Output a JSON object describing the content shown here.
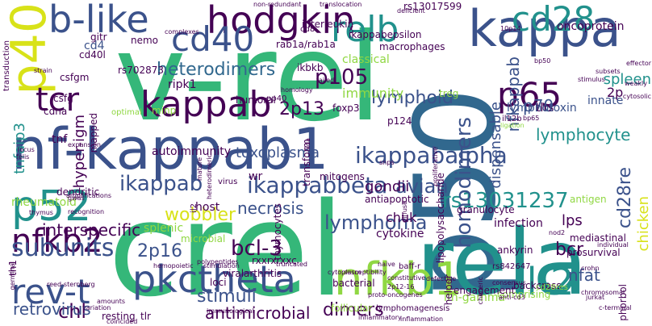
{
  "palette": {
    "purple": "#440154",
    "indigo": "#3b528b",
    "blue": "#31688e",
    "teal": "#21918c",
    "green": "#35b779",
    "lime": "#90d743",
    "yellow": "#d8e219"
  },
  "words": [
    {
      "t": "v-rel",
      "c": "green"
    },
    {
      "t": "crel",
      "c": "green"
    },
    {
      "t": "p50",
      "c": "blue"
    },
    {
      "t": "nf-kappab1",
      "c": "indigo"
    },
    {
      "t": "rela",
      "c": "teal"
    },
    {
      "t": "kappa",
      "c": "indigo"
    },
    {
      "t": "p40",
      "c": "yellow"
    },
    {
      "t": "b-like",
      "c": "indigo"
    },
    {
      "t": "hodgkin",
      "c": "purple"
    },
    {
      "t": "relb",
      "c": "teal"
    },
    {
      "t": "cd28",
      "c": "teal"
    },
    {
      "t": "cd40",
      "c": "indigo"
    },
    {
      "t": "kappab",
      "c": "purple"
    },
    {
      "t": "tcr",
      "c": "purple"
    },
    {
      "t": "p65",
      "c": "purple"
    },
    {
      "t": "p52",
      "c": "teal"
    },
    {
      "t": "nfkb2",
      "c": "purple"
    },
    {
      "t": "rev-t",
      "c": "indigo"
    },
    {
      "t": "pkctheta",
      "c": "indigo"
    },
    {
      "t": "nfkb1",
      "c": "lime"
    },
    {
      "t": "il-2",
      "c": "teal"
    },
    {
      "t": "subunits",
      "c": "indigo"
    },
    {
      "t": "ikappab",
      "c": "indigo"
    },
    {
      "t": "ikappabbeta",
      "c": "indigo"
    },
    {
      "t": "ikappabalpha",
      "c": "indigo"
    },
    {
      "t": "heterodimers",
      "c": "blue"
    },
    {
      "t": "p105",
      "c": "purple"
    },
    {
      "t": "2p13",
      "c": "purple"
    },
    {
      "t": "lymphoid",
      "c": "indigo"
    },
    {
      "t": "lymphoma",
      "c": "indigo"
    },
    {
      "t": "rs13031237",
      "c": "teal"
    },
    {
      "t": "homodimers",
      "c": "indigo"
    },
    {
      "t": "cd28re",
      "c": "indigo"
    },
    {
      "t": "avian",
      "c": "indigo"
    },
    {
      "t": "bcr",
      "c": "purple"
    },
    {
      "t": "chl",
      "c": "purple"
    },
    {
      "t": "bcl-3",
      "c": "purple"
    },
    {
      "t": "2p16",
      "c": "indigo"
    },
    {
      "t": "wobbler",
      "c": "yellow"
    },
    {
      "t": "interspecific",
      "c": "purple"
    },
    {
      "t": "necrosis",
      "c": "indigo"
    },
    {
      "t": "spleen",
      "c": "teal"
    },
    {
      "t": "p70",
      "c": "indigo"
    },
    {
      "t": "lymphocyte",
      "c": "teal"
    },
    {
      "t": "nfkappab",
      "c": "indigo"
    },
    {
      "t": "dispensable",
      "c": "indigo"
    },
    {
      "t": "tnfaip3",
      "c": "teal"
    },
    {
      "t": "hyper-igm",
      "c": "purple"
    },
    {
      "t": "chicken",
      "c": "yellow"
    },
    {
      "t": "retrovirus",
      "c": "indigo"
    },
    {
      "t": "stimuli",
      "c": "indigo"
    },
    {
      "t": "antimicrobial",
      "c": "purple"
    },
    {
      "t": "dimers",
      "c": "purple"
    },
    {
      "t": "lps",
      "c": "purple"
    },
    {
      "t": "nfat",
      "c": "indigo"
    },
    {
      "t": "toxoplasma",
      "c": "indigo"
    },
    {
      "t": "autoimmunity",
      "c": "purple"
    },
    {
      "t": "gondii",
      "c": "purple"
    },
    {
      "t": "chuk",
      "c": "purple"
    },
    {
      "t": "immunity",
      "c": "lime"
    },
    {
      "t": "classical",
      "c": "lime"
    },
    {
      "t": "ripk1",
      "c": "purple"
    },
    {
      "t": "cd4",
      "c": "indigo"
    },
    {
      "t": "tnf",
      "c": "purple"
    },
    {
      "t": "dendritic",
      "c": "purple"
    },
    {
      "t": "rheumatoid",
      "c": "lime"
    },
    {
      "t": "splenic",
      "c": "lime"
    },
    {
      "t": "innate",
      "c": "indigo"
    },
    {
      "t": "tlrs",
      "c": "purple"
    },
    {
      "t": "lymphotoxin",
      "c": "indigo"
    },
    {
      "t": "oncoprotein",
      "c": "purple"
    },
    {
      "t": "2p",
      "c": "purple"
    },
    {
      "t": "host",
      "c": "purple"
    },
    {
      "t": "wr",
      "c": "purple"
    },
    {
      "t": "microbial",
      "c": "lime"
    },
    {
      "t": "antiapoptotic",
      "c": "purple"
    },
    {
      "t": "cytokine",
      "c": "purple"
    },
    {
      "t": "infection",
      "c": "purple"
    },
    {
      "t": "antigen",
      "c": "lime"
    },
    {
      "t": "mitogens",
      "c": "purple"
    },
    {
      "t": "interleukin",
      "c": "purple"
    },
    {
      "t": "ikappabepsilon",
      "c": "purple"
    },
    {
      "t": "rs13017599",
      "c": "purple"
    },
    {
      "t": "foxp3",
      "c": "purple"
    },
    {
      "t": "granulocyte",
      "c": "purple"
    },
    {
      "t": "lipopolysaccharide",
      "c": "purple"
    },
    {
      "t": "transform",
      "c": "purple"
    },
    {
      "t": "loci",
      "c": "purple"
    },
    {
      "t": "viral",
      "c": "purple"
    },
    {
      "t": "rxxrxrxxc",
      "c": "purple"
    },
    {
      "t": "bacterial",
      "c": "purple"
    },
    {
      "t": "follicular",
      "c": "lime"
    },
    {
      "t": "ifn-gamma",
      "c": "lime"
    },
    {
      "t": "mediastinal",
      "c": "purple"
    },
    {
      "t": "prosurvival",
      "c": "purple"
    },
    {
      "t": "phorbol",
      "c": "purple"
    },
    {
      "t": "backcross",
      "c": "purple"
    },
    {
      "t": "ankyrin",
      "c": "purple"
    },
    {
      "t": "comprising",
      "c": "lime"
    },
    {
      "t": "helper",
      "c": "purple"
    },
    {
      "t": "engagement",
      "c": "purple"
    },
    {
      "t": "tlr",
      "c": "purple"
    },
    {
      "t": "resting",
      "c": "purple"
    },
    {
      "t": "il2",
      "c": "purple"
    },
    {
      "t": "arthritis",
      "c": "purple"
    },
    {
      "t": "thymocytes",
      "c": "purple"
    },
    {
      "t": "virus",
      "c": "purple"
    },
    {
      "t": "humoral",
      "c": "purple"
    },
    {
      "t": "optimal",
      "c": "lime"
    },
    {
      "t": "minp",
      "c": "lime"
    },
    {
      "t": "mapped",
      "c": "purple"
    },
    {
      "t": "macrophages",
      "c": "purple"
    },
    {
      "t": "csfgm",
      "c": "purple"
    },
    {
      "t": "csfg",
      "c": "purple"
    },
    {
      "t": "cd40l",
      "c": "purple"
    },
    {
      "t": "gitr",
      "c": "purple"
    },
    {
      "t": "nemo",
      "c": "purple"
    },
    {
      "t": "rab1a/rab1a",
      "c": "purple"
    },
    {
      "t": "ikbkb",
      "c": "purple"
    },
    {
      "t": "rs702873",
      "c": "purple"
    },
    {
      "t": "p124",
      "c": "purple"
    },
    {
      "t": "treg",
      "c": "lime"
    },
    {
      "t": "cdna",
      "c": "purple"
    },
    {
      "t": "baff-r",
      "c": "purple"
    },
    {
      "t": "th1",
      "c": "purple"
    },
    {
      "t": "rs842647",
      "c": "purple"
    },
    {
      "t": "cd28res",
      "c": "lime"
    },
    {
      "t": "cd8",
      "c": "purple"
    },
    {
      "t": "pp40",
      "c": "purple"
    },
    {
      "t": "bp50",
      "c": "purple"
    },
    {
      "t": "translocation",
      "c": "purple"
    },
    {
      "t": "non-redundant",
      "c": "purple"
    },
    {
      "t": "complexes",
      "c": "purple"
    },
    {
      "t": "transduction",
      "c": "purple"
    },
    {
      "t": "deficient",
      "c": "purple"
    },
    {
      "t": "ligation",
      "c": "lime"
    },
    {
      "t": "il12b",
      "c": "purple"
    },
    {
      "t": "nod2",
      "c": "purple"
    },
    {
      "t": "crohn",
      "c": "purple"
    },
    {
      "t": "proto-oncogenes",
      "c": "purple"
    },
    {
      "t": "lymphomagenesis",
      "c": "purple"
    },
    {
      "t": "inflammation",
      "c": "purple"
    },
    {
      "t": "inflammatory",
      "c": "purple"
    },
    {
      "t": "immunological",
      "c": "purple"
    },
    {
      "t": "reed-sternberg",
      "c": "purple"
    },
    {
      "t": "germinal",
      "c": "purple"
    },
    {
      "t": "recognition",
      "c": "purple"
    },
    {
      "t": "amplifications",
      "c": "purple"
    },
    {
      "t": "hemopoietic",
      "c": "purple"
    },
    {
      "t": "polypeptides",
      "c": "purple"
    },
    {
      "t": "cytoplasm",
      "c": "purple"
    },
    {
      "t": "susceptibility",
      "c": "purple"
    },
    {
      "t": "naive",
      "c": "purple"
    },
    {
      "t": "constitutive",
      "c": "purple"
    },
    {
      "t": "truncated",
      "c": "purple"
    },
    {
      "t": "2p12-16",
      "c": "purple"
    },
    {
      "t": "anti-cd3",
      "c": "purple"
    },
    {
      "t": "jurkat",
      "c": "purple"
    },
    {
      "t": "c-terminal",
      "c": "purple"
    },
    {
      "t": "chromosomal",
      "c": "purple"
    },
    {
      "t": "consensus",
      "c": "purple"
    },
    {
      "t": "chimeric",
      "c": "purple"
    },
    {
      "t": "diffuse",
      "c": "purple"
    },
    {
      "t": "individual",
      "c": "purple"
    },
    {
      "t": "effector",
      "c": "purple"
    },
    {
      "t": "cytosolic",
      "c": "purple"
    },
    {
      "t": "weakly",
      "c": "purple"
    },
    {
      "t": "subsets",
      "c": "purple"
    },
    {
      "t": "stimulus",
      "c": "purple"
    },
    {
      "t": "bp65",
      "c": "purple"
    },
    {
      "t": "snps",
      "c": "purple"
    },
    {
      "t": "expansion",
      "c": "purple"
    },
    {
      "t": "locus",
      "c": "purple"
    },
    {
      "t": "felis",
      "c": "purple"
    },
    {
      "t": "strain",
      "c": "purple"
    },
    {
      "t": "gwas",
      "c": "purple"
    },
    {
      "t": "variation",
      "c": "purple"
    },
    {
      "t": "coincided",
      "c": "purple"
    },
    {
      "t": "amounts",
      "c": "purple"
    },
    {
      "t": "thymus",
      "c": "purple"
    },
    {
      "t": "failed",
      "c": "purple"
    },
    {
      "t": "homology",
      "c": "purple"
    },
    {
      "t": "10p14",
      "c": "purple"
    },
    {
      "t": "stimulation",
      "c": "purple"
    },
    {
      "t": "mature",
      "c": "purple"
    },
    {
      "t": "heterodimeric",
      "c": "purple"
    },
    {
      "t": "kda",
      "c": "purple"
    },
    {
      "t": "proliferative",
      "c": "purple"
    },
    {
      "t": "defective",
      "c": "purple"
    },
    {
      "t": "nucleus",
      "c": "purple"
    },
    {
      "t": "thymic",
      "c": "purple"
    },
    {
      "t": "p100",
      "c": "purple"
    }
  ]
}
